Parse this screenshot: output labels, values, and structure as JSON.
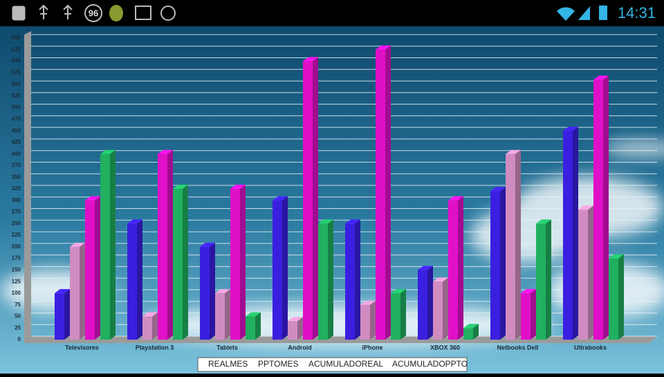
{
  "status_bar": {
    "badge": "96",
    "time": "14:31"
  },
  "chart_data": {
    "type": "bar3d",
    "categories": [
      "Televisores",
      "Playstation 3",
      "Tablets",
      "Android",
      "iPhone",
      "XBOX 360",
      "Netbooks Dell",
      "Ultrabooks"
    ],
    "series": [
      {
        "name": "REALMES",
        "color": "#3a1fe0",
        "values": [
          100,
          250,
          200,
          300,
          250,
          150,
          320,
          450
        ]
      },
      {
        "name": "PPTOMES",
        "color": "#d08cc0",
        "values": [
          200,
          50,
          100,
          40,
          75,
          125,
          400,
          280
        ]
      },
      {
        "name": "ACUMULADOREAL",
        "color": "#e010c8",
        "values": [
          300,
          400,
          325,
          600,
          625,
          300,
          100,
          560
        ]
      },
      {
        "name": "ACUMULADOPPTO",
        "color": "#20b060",
        "values": [
          400,
          325,
          50,
          250,
          100,
          25,
          250,
          175
        ]
      }
    ],
    "ylim": [
      0,
      650
    ],
    "yticks": [
      0,
      25,
      50,
      75,
      100,
      125,
      150,
      175,
      200,
      225,
      250,
      275,
      300,
      325,
      350,
      375,
      400,
      425,
      450,
      475,
      500,
      525,
      550,
      575,
      600,
      625,
      650
    ],
    "grid": true,
    "legend": "bottom"
  }
}
